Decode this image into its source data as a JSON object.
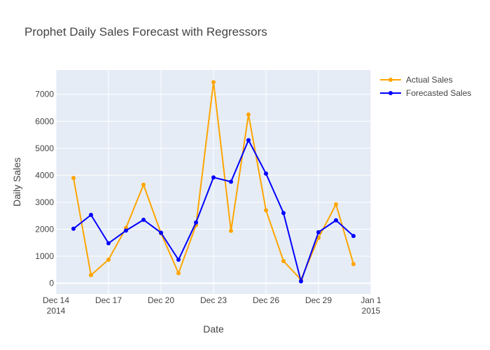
{
  "chart_data": {
    "type": "line",
    "title": "Prophet Daily Sales Forecast with Regressors",
    "xlabel": "Date",
    "ylabel": "Daily Sales",
    "x_range": [
      "2014-12-14",
      "2015-01-01"
    ],
    "ylim": [
      -400,
      7900
    ],
    "grid": true,
    "legend_position": "top-right",
    "x_ticks": [
      {
        "date": "2014-12-14",
        "label": "Dec 14",
        "sublabel": "2014"
      },
      {
        "date": "2014-12-17",
        "label": "Dec 17",
        "sublabel": ""
      },
      {
        "date": "2014-12-20",
        "label": "Dec 20",
        "sublabel": ""
      },
      {
        "date": "2014-12-23",
        "label": "Dec 23",
        "sublabel": ""
      },
      {
        "date": "2014-12-26",
        "label": "Dec 26",
        "sublabel": ""
      },
      {
        "date": "2014-12-29",
        "label": "Dec 29",
        "sublabel": ""
      },
      {
        "date": "2015-01-01",
        "label": "Jan 1",
        "sublabel": "2015"
      }
    ],
    "y_ticks": [
      0,
      1000,
      2000,
      3000,
      4000,
      5000,
      6000,
      7000
    ],
    "x": [
      "2014-12-15",
      "2014-12-16",
      "2014-12-17",
      "2014-12-18",
      "2014-12-19",
      "2014-12-20",
      "2014-12-21",
      "2014-12-22",
      "2014-12-23",
      "2014-12-24",
      "2014-12-25",
      "2014-12-26",
      "2014-12-27",
      "2014-12-28",
      "2014-12-29",
      "2014-12-30",
      "2014-12-31"
    ],
    "series": [
      {
        "name": "Actual Sales",
        "color": "#FFA500",
        "values": [
          3900,
          300,
          870,
          2050,
          3650,
          1850,
          370,
          2150,
          7450,
          1940,
          6250,
          2700,
          820,
          130,
          1680,
          2920,
          710
        ]
      },
      {
        "name": "Forecasted Sales",
        "color": "#0000FF",
        "values": [
          2020,
          2530,
          1480,
          1950,
          2350,
          1870,
          870,
          2250,
          3920,
          3760,
          5300,
          4060,
          2600,
          70,
          1890,
          2330,
          1750
        ]
      }
    ]
  }
}
